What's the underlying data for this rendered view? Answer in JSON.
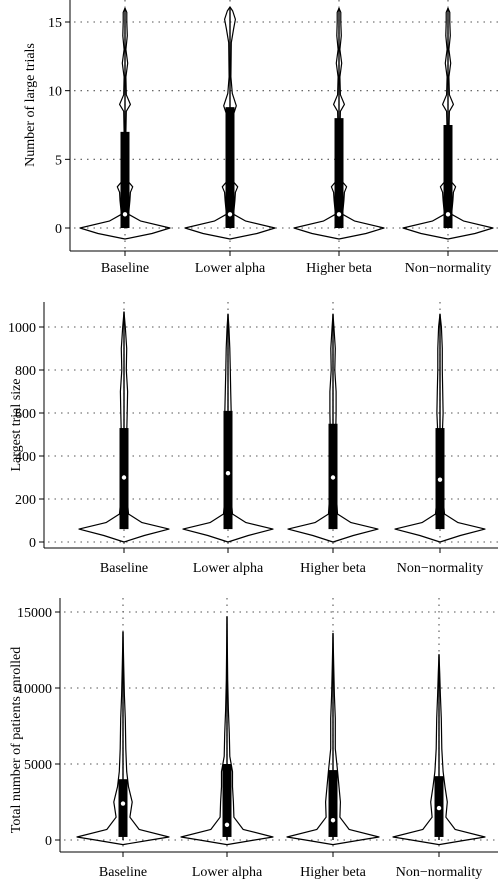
{
  "chart_data": [
    {
      "type": "violin",
      "ylabel": "Number of large trials",
      "categories": [
        "Baseline",
        "Lower alpha",
        "Higher beta",
        "Non−normality"
      ],
      "yticks": [
        0,
        5,
        10,
        15
      ],
      "ylim": [
        -1.1,
        16.5
      ],
      "grid": "horizontal dotted",
      "series": [
        {
          "q1": 0,
          "median": 1,
          "q3": 7,
          "whisker_low": 0,
          "whisker_high": 16,
          "density": [
            [
              -0.8,
              0
            ],
            [
              -0.4,
              0.6
            ],
            [
              0,
              1
            ],
            [
              0.5,
              0.35
            ],
            [
              1,
              0.08
            ],
            [
              2,
              0.11
            ],
            [
              2.6,
              0.12
            ],
            [
              3,
              0.17
            ],
            [
              3.5,
              0.04
            ],
            [
              4.5,
              0.02
            ],
            [
              6,
              0.07
            ],
            [
              7,
              0.02
            ],
            [
              8.5,
              0.03
            ],
            [
              9,
              0.12
            ],
            [
              9.7,
              0.03
            ],
            [
              11,
              0.02
            ],
            [
              12,
              0.06
            ],
            [
              13,
              0.02
            ],
            [
              14,
              0.05
            ],
            [
              15,
              0.04
            ],
            [
              15.7,
              0.04
            ],
            [
              16,
              0
            ]
          ]
        },
        {
          "q1": 0,
          "median": 1,
          "q3": 8.8,
          "whisker_low": 0,
          "whisker_high": 16,
          "density": [
            [
              -0.8,
              0
            ],
            [
              -0.4,
              0.6
            ],
            [
              0,
              1
            ],
            [
              0.5,
              0.35
            ],
            [
              1,
              0.08
            ],
            [
              2,
              0.11
            ],
            [
              2.6,
              0.12
            ],
            [
              3,
              0.17
            ],
            [
              3.5,
              0.04
            ],
            [
              4.5,
              0.02
            ],
            [
              6,
              0.03
            ],
            [
              8,
              0.05
            ],
            [
              8.9,
              0.14
            ],
            [
              9.8,
              0.05
            ],
            [
              11,
              0.02
            ],
            [
              13.5,
              0.03
            ],
            [
              14.5,
              0.08
            ],
            [
              15.2,
              0.12
            ],
            [
              15.8,
              0.06
            ],
            [
              16.1,
              0
            ]
          ]
        },
        {
          "q1": 0,
          "median": 1,
          "q3": 8,
          "whisker_low": 0,
          "whisker_high": 16,
          "density": [
            [
              -0.8,
              0
            ],
            [
              -0.4,
              0.6
            ],
            [
              0,
              1
            ],
            [
              0.5,
              0.35
            ],
            [
              1,
              0.08
            ],
            [
              2,
              0.11
            ],
            [
              2.6,
              0.12
            ],
            [
              3,
              0.17
            ],
            [
              3.5,
              0.04
            ],
            [
              4.5,
              0.02
            ],
            [
              6,
              0.07
            ],
            [
              7,
              0.02
            ],
            [
              8.5,
              0.03
            ],
            [
              9,
              0.12
            ],
            [
              9.7,
              0.03
            ],
            [
              11,
              0.02
            ],
            [
              12,
              0.06
            ],
            [
              13,
              0.02
            ],
            [
              14,
              0.05
            ],
            [
              15,
              0.04
            ],
            [
              15.7,
              0.04
            ],
            [
              16,
              0
            ]
          ]
        },
        {
          "q1": 0,
          "median": 1,
          "q3": 7.5,
          "whisker_low": 0,
          "whisker_high": 16,
          "density": [
            [
              -0.8,
              0
            ],
            [
              -0.4,
              0.6
            ],
            [
              0,
              1
            ],
            [
              0.5,
              0.35
            ],
            [
              1,
              0.08
            ],
            [
              2,
              0.11
            ],
            [
              2.6,
              0.12
            ],
            [
              3,
              0.17
            ],
            [
              3.5,
              0.04
            ],
            [
              4.5,
              0.02
            ],
            [
              6,
              0.07
            ],
            [
              7,
              0.02
            ],
            [
              8.5,
              0.03
            ],
            [
              9,
              0.12
            ],
            [
              9.7,
              0.03
            ],
            [
              11,
              0.02
            ],
            [
              12,
              0.06
            ],
            [
              13,
              0.02
            ],
            [
              14,
              0.05
            ],
            [
              15,
              0.04
            ],
            [
              15.7,
              0.04
            ],
            [
              16,
              0
            ]
          ]
        }
      ]
    },
    {
      "type": "violin",
      "ylabel": "Largest trial size",
      "categories": [
        "Baseline",
        "Lower alpha",
        "Higher beta",
        "Non−normality"
      ],
      "yticks": [
        0,
        200,
        400,
        600,
        800,
        1000
      ],
      "ylim": [
        -15,
        1110
      ],
      "grid": "horizontal dotted",
      "series": [
        {
          "q1": 60,
          "median": 300,
          "q3": 530,
          "whisker_low": 60,
          "whisker_high": 1070,
          "density": [
            [
              0,
              0
            ],
            [
              30,
              0.45
            ],
            [
              60,
              1
            ],
            [
              90,
              0.4
            ],
            [
              130,
              0.1
            ],
            [
              200,
              0.07
            ],
            [
              300,
              0.05
            ],
            [
              400,
              0.08
            ],
            [
              500,
              0.06
            ],
            [
              600,
              0.07
            ],
            [
              700,
              0.08
            ],
            [
              800,
              0.05
            ],
            [
              900,
              0.06
            ],
            [
              1000,
              0.03
            ],
            [
              1070,
              0
            ]
          ]
        },
        {
          "q1": 60,
          "median": 320,
          "q3": 610,
          "whisker_low": 60,
          "whisker_high": 1060,
          "density": [
            [
              0,
              0
            ],
            [
              30,
              0.45
            ],
            [
              60,
              1
            ],
            [
              90,
              0.4
            ],
            [
              130,
              0.1
            ],
            [
              200,
              0.07
            ],
            [
              300,
              0.07
            ],
            [
              400,
              0.07
            ],
            [
              500,
              0.06
            ],
            [
              600,
              0.07
            ],
            [
              700,
              0.06
            ],
            [
              800,
              0.05
            ],
            [
              900,
              0.04
            ],
            [
              1000,
              0.02
            ],
            [
              1060,
              0
            ]
          ]
        },
        {
          "q1": 60,
          "median": 300,
          "q3": 550,
          "whisker_low": 60,
          "whisker_high": 1060,
          "density": [
            [
              0,
              0
            ],
            [
              30,
              0.45
            ],
            [
              60,
              1
            ],
            [
              90,
              0.4
            ],
            [
              130,
              0.1
            ],
            [
              200,
              0.08
            ],
            [
              300,
              0.06
            ],
            [
              400,
              0.07
            ],
            [
              500,
              0.06
            ],
            [
              600,
              0.07
            ],
            [
              700,
              0.07
            ],
            [
              800,
              0.04
            ],
            [
              900,
              0.05
            ],
            [
              1000,
              0.02
            ],
            [
              1060,
              0
            ]
          ]
        },
        {
          "q1": 60,
          "median": 290,
          "q3": 530,
          "whisker_low": 60,
          "whisker_high": 1060,
          "density": [
            [
              0,
              0
            ],
            [
              30,
              0.45
            ],
            [
              60,
              1
            ],
            [
              90,
              0.4
            ],
            [
              130,
              0.1
            ],
            [
              200,
              0.07
            ],
            [
              300,
              0.06
            ],
            [
              400,
              0.07
            ],
            [
              500,
              0.05
            ],
            [
              600,
              0.07
            ],
            [
              700,
              0.06
            ],
            [
              800,
              0.05
            ],
            [
              900,
              0.05
            ],
            [
              1000,
              0.03
            ],
            [
              1060,
              0
            ]
          ]
        }
      ]
    },
    {
      "type": "violin",
      "ylabel": "Total number of patients enrolled",
      "categories": [
        "Baseline",
        "Lower alpha",
        "Higher beta",
        "Non−normality"
      ],
      "yticks": [
        0,
        5000,
        10000,
        15000
      ],
      "ylim": [
        -400,
        15800
      ],
      "grid": "horizontal dotted",
      "series": [
        {
          "q1": 200,
          "median": 2400,
          "q3": 4000,
          "whisker_low": 0,
          "whisker_high": 13700,
          "density": [
            [
              -300,
              0
            ],
            [
              0,
              0.6
            ],
            [
              200,
              1
            ],
            [
              700,
              0.35
            ],
            [
              1500,
              0.15
            ],
            [
              2500,
              0.2
            ],
            [
              3500,
              0.12
            ],
            [
              4500,
              0.08
            ],
            [
              6000,
              0.06
            ],
            [
              8000,
              0.05
            ],
            [
              9500,
              0.03
            ],
            [
              11500,
              0.015
            ],
            [
              13700,
              0
            ]
          ]
        },
        {
          "q1": 200,
          "median": 1000,
          "q3": 5000,
          "whisker_low": 0,
          "whisker_high": 14700,
          "density": [
            [
              -300,
              0
            ],
            [
              0,
              0.6
            ],
            [
              200,
              1
            ],
            [
              700,
              0.35
            ],
            [
              1500,
              0.15
            ],
            [
              2500,
              0.14
            ],
            [
              3500,
              0.12
            ],
            [
              4500,
              0.12
            ],
            [
              5500,
              0.06
            ],
            [
              7000,
              0.05
            ],
            [
              8500,
              0.03
            ],
            [
              10500,
              0.015
            ],
            [
              14700,
              0
            ]
          ]
        },
        {
          "q1": 200,
          "median": 1300,
          "q3": 4600,
          "whisker_low": 0,
          "whisker_high": 13600,
          "density": [
            [
              -300,
              0
            ],
            [
              0,
              0.6
            ],
            [
              200,
              1
            ],
            [
              700,
              0.35
            ],
            [
              1500,
              0.15
            ],
            [
              2500,
              0.16
            ],
            [
              3500,
              0.13
            ],
            [
              4500,
              0.1
            ],
            [
              6000,
              0.05
            ],
            [
              8000,
              0.05
            ],
            [
              9500,
              0.03
            ],
            [
              11500,
              0.015
            ],
            [
              13600,
              0
            ]
          ]
        },
        {
          "q1": 200,
          "median": 2100,
          "q3": 4200,
          "whisker_low": 0,
          "whisker_high": 12200,
          "density": [
            [
              -300,
              0
            ],
            [
              0,
              0.6
            ],
            [
              200,
              1
            ],
            [
              700,
              0.35
            ],
            [
              1500,
              0.15
            ],
            [
              2500,
              0.18
            ],
            [
              3500,
              0.13
            ],
            [
              4500,
              0.09
            ],
            [
              6000,
              0.06
            ],
            [
              8000,
              0.05
            ],
            [
              9500,
              0.03
            ],
            [
              11000,
              0.015
            ],
            [
              12200,
              0
            ]
          ]
        }
      ]
    }
  ]
}
